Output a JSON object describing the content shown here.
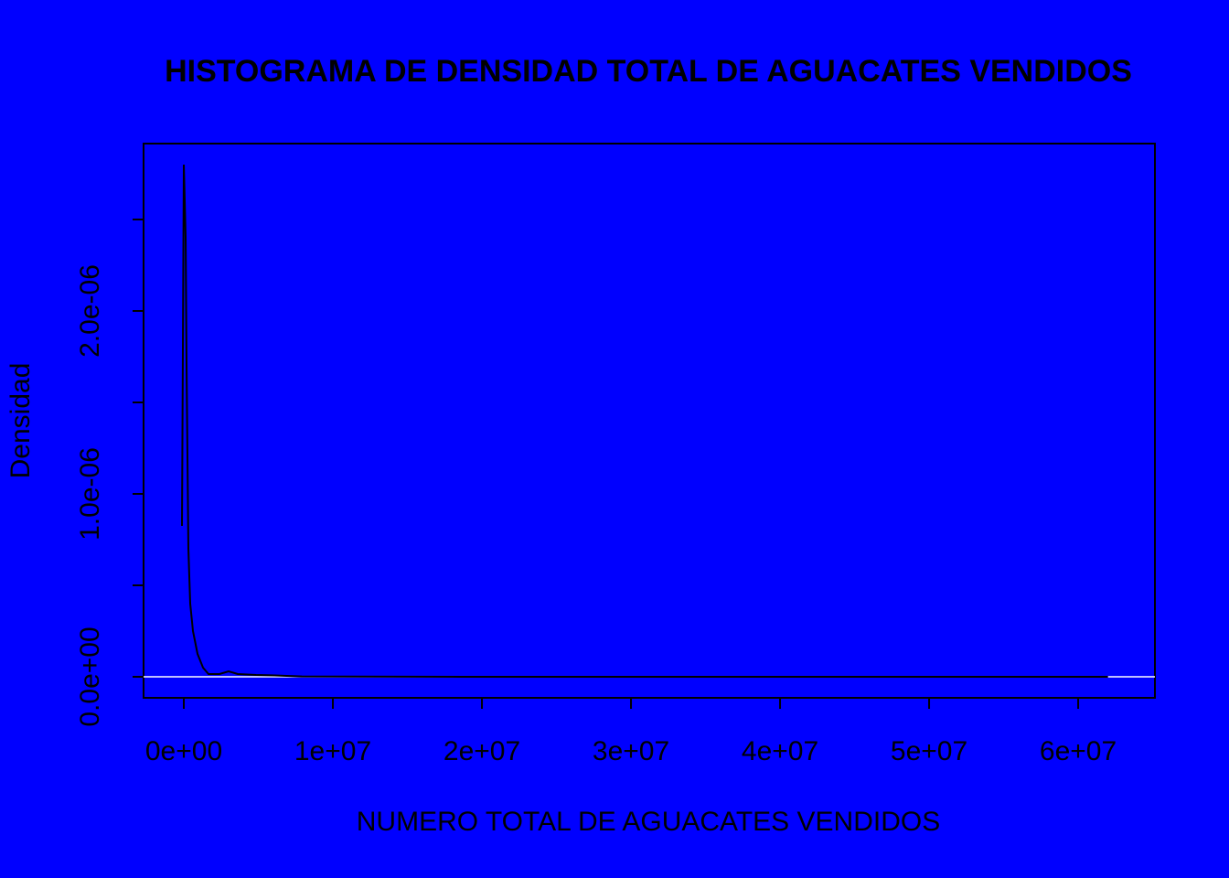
{
  "chart_data": {
    "type": "line",
    "title": "HISTOGRAMA DE DENSIDAD TOTAL DE AGUACATES VENDIDOS",
    "x_label": "NUMERO TOTAL DE AGUACATES VENDIDOS",
    "y_label": "Densidad",
    "background": "#0000ff",
    "hline": 0,
    "hline_color": "#ffffff",
    "x": [
      -122700,
      0,
      122700,
      184000,
      306700,
      429400,
      613500,
      920200,
      1288300,
      1656400,
      2392600,
      3006100,
      3619600,
      4846600,
      6073600,
      7914100,
      20000000,
      40000000,
      62000000
    ],
    "series": [
      {
        "color": "#000000",
        "values": [
          8.25e-07,
          2.8e-06,
          2.4e-06,
          1.7e-06,
          7e-07,
          4e-07,
          2.5e-07,
          1.25e-07,
          5e-08,
          1.5e-08,
          1.5e-08,
          3e-08,
          1.5e-08,
          1e-08,
          7.5e-09,
          2e-09,
          0,
          0,
          0
        ]
      }
    ],
    "xlim": [
      -2700000,
      65150000
    ],
    "ylim": [
      -1.15e-07,
      2.915e-06
    ],
    "xticks": [
      {
        "value": 0,
        "label": "0e+00"
      },
      {
        "value": 10000000,
        "label": "1e+07"
      },
      {
        "value": 20000000,
        "label": "2e+07"
      },
      {
        "value": 30000000,
        "label": "3e+07"
      },
      {
        "value": 40000000,
        "label": "4e+07"
      },
      {
        "value": 50000000,
        "label": "5e+07"
      },
      {
        "value": 60000000,
        "label": "6e+07"
      }
    ],
    "yticks": [
      {
        "value": 0,
        "label": "0.0e+00"
      },
      {
        "value": 5e-07,
        "label": null
      },
      {
        "value": 1e-06,
        "label": "1.0e-06"
      },
      {
        "value": 1.5e-06,
        "label": null
      },
      {
        "value": 2e-06,
        "label": "2.0e-06"
      },
      {
        "value": 2.5e-06,
        "label": null
      }
    ]
  }
}
